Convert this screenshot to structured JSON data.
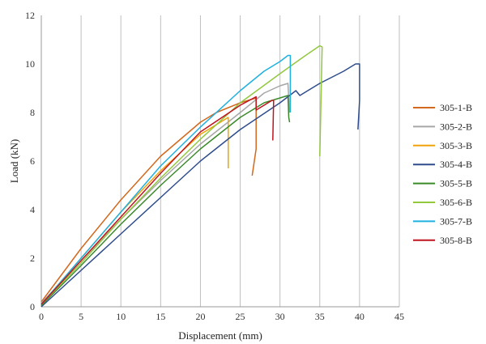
{
  "chart_data": {
    "type": "line",
    "xlabel": "Displacement (mm)",
    "ylabel": "Load (kN)",
    "xlim": [
      0,
      45
    ],
    "ylim": [
      0,
      12
    ],
    "xticks": [
      0,
      5,
      10,
      15,
      20,
      25,
      30,
      35,
      40,
      45
    ],
    "yticks": [
      0,
      2,
      4,
      6,
      8,
      10,
      12
    ],
    "grid": "vertical",
    "legend_position": "right",
    "series": [
      {
        "name": "305-1-B",
        "color": "#d2691e",
        "x": [
          0,
          5,
          10,
          15,
          20,
          22,
          25,
          27,
          27.0,
          26.5
        ],
        "y": [
          0.2,
          2.4,
          4.4,
          6.2,
          7.6,
          8.0,
          8.4,
          8.6,
          6.5,
          5.4
        ]
      },
      {
        "name": "305-2-B",
        "color": "#a6a6a6",
        "x": [
          0,
          5,
          10,
          15,
          20,
          25,
          28,
          30,
          31,
          31.2
        ],
        "y": [
          0.15,
          1.9,
          3.6,
          5.2,
          6.7,
          8.0,
          8.8,
          9.1,
          9.2,
          8.0
        ]
      },
      {
        "name": "305-3-B",
        "color": "#f0a30a",
        "x": [
          0,
          5,
          10,
          15,
          20,
          22.5,
          23.5,
          23.5
        ],
        "y": [
          0.1,
          2.0,
          3.9,
          5.6,
          7.1,
          7.6,
          7.8,
          5.7
        ]
      },
      {
        "name": "305-4-B",
        "color": "#2f4d8c",
        "x": [
          0,
          5,
          10,
          15,
          20,
          25,
          30,
          32,
          32.5,
          35,
          38,
          39.5,
          40,
          40,
          39.8
        ],
        "y": [
          0.0,
          1.5,
          3.0,
          4.5,
          6.0,
          7.3,
          8.4,
          8.9,
          8.7,
          9.2,
          9.7,
          10.0,
          10.0,
          8.5,
          7.3
        ]
      },
      {
        "name": "305-5-B",
        "color": "#3a8a2a",
        "x": [
          0,
          5,
          10,
          15,
          20,
          25,
          28,
          30,
          31,
          31.1,
          31.2
        ],
        "y": [
          0.05,
          1.7,
          3.4,
          5.0,
          6.5,
          7.8,
          8.4,
          8.6,
          8.7,
          7.8,
          7.6
        ]
      },
      {
        "name": "305-6-B",
        "color": "#92c83e",
        "x": [
          0,
          5,
          10,
          15,
          20,
          25,
          30,
          33,
          35,
          35.3,
          35.0
        ],
        "y": [
          0.1,
          1.8,
          3.6,
          5.3,
          6.9,
          8.4,
          9.6,
          10.3,
          10.75,
          10.7,
          6.2
        ]
      },
      {
        "name": "305-7-B",
        "color": "#1fb0e0",
        "x": [
          0,
          5,
          10,
          15,
          20,
          25,
          28,
          30,
          31,
          31.3,
          31.3
        ],
        "y": [
          0.1,
          2.0,
          3.9,
          5.8,
          7.4,
          8.9,
          9.7,
          10.1,
          10.35,
          10.35,
          8.0
        ]
      },
      {
        "name": "305-8-B",
        "color": "#c0141e",
        "x": [
          0,
          5,
          10,
          15,
          20,
          25,
          27,
          27,
          29,
          29.2,
          29.1
        ],
        "y": [
          0.1,
          1.9,
          3.7,
          5.5,
          7.2,
          8.3,
          8.65,
          8.1,
          8.5,
          8.5,
          6.85
        ]
      }
    ]
  }
}
